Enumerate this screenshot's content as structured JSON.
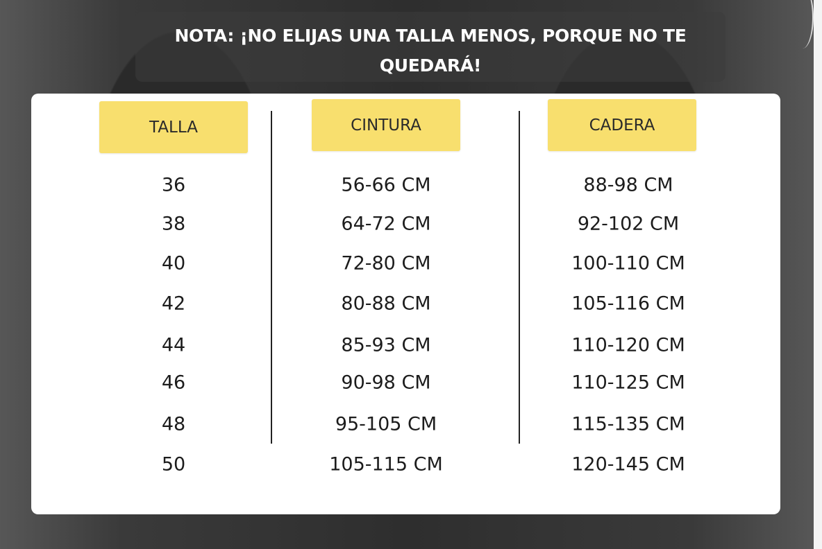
{
  "note": "NOTA: ¡NO ELIJAS UNA TALLA MENOS, PORQUE NO TE QUEDARÁ!",
  "headers": [
    "TALLA",
    "CINTURA",
    "CADERA"
  ],
  "rows": [
    [
      "36",
      "56-66 CM",
      "88-98 CM"
    ],
    [
      "38",
      "64-72 CM",
      "92-102 CM"
    ],
    [
      "40",
      "72-80 CM",
      "100-110 CM"
    ],
    [
      "42",
      "80-88 CM",
      "105-116 CM"
    ],
    [
      "44",
      "85-93 CM",
      "110-120 CM"
    ],
    [
      "46",
      "90-98 CM",
      "110-125 CM"
    ],
    [
      "48",
      "95-105 CM",
      "115-135 CM"
    ],
    [
      "50",
      "105-115 CM",
      "120-145 CM"
    ]
  ],
  "colors": {
    "header_bg": "#f8df6e",
    "card_bg": "#ffffff"
  }
}
